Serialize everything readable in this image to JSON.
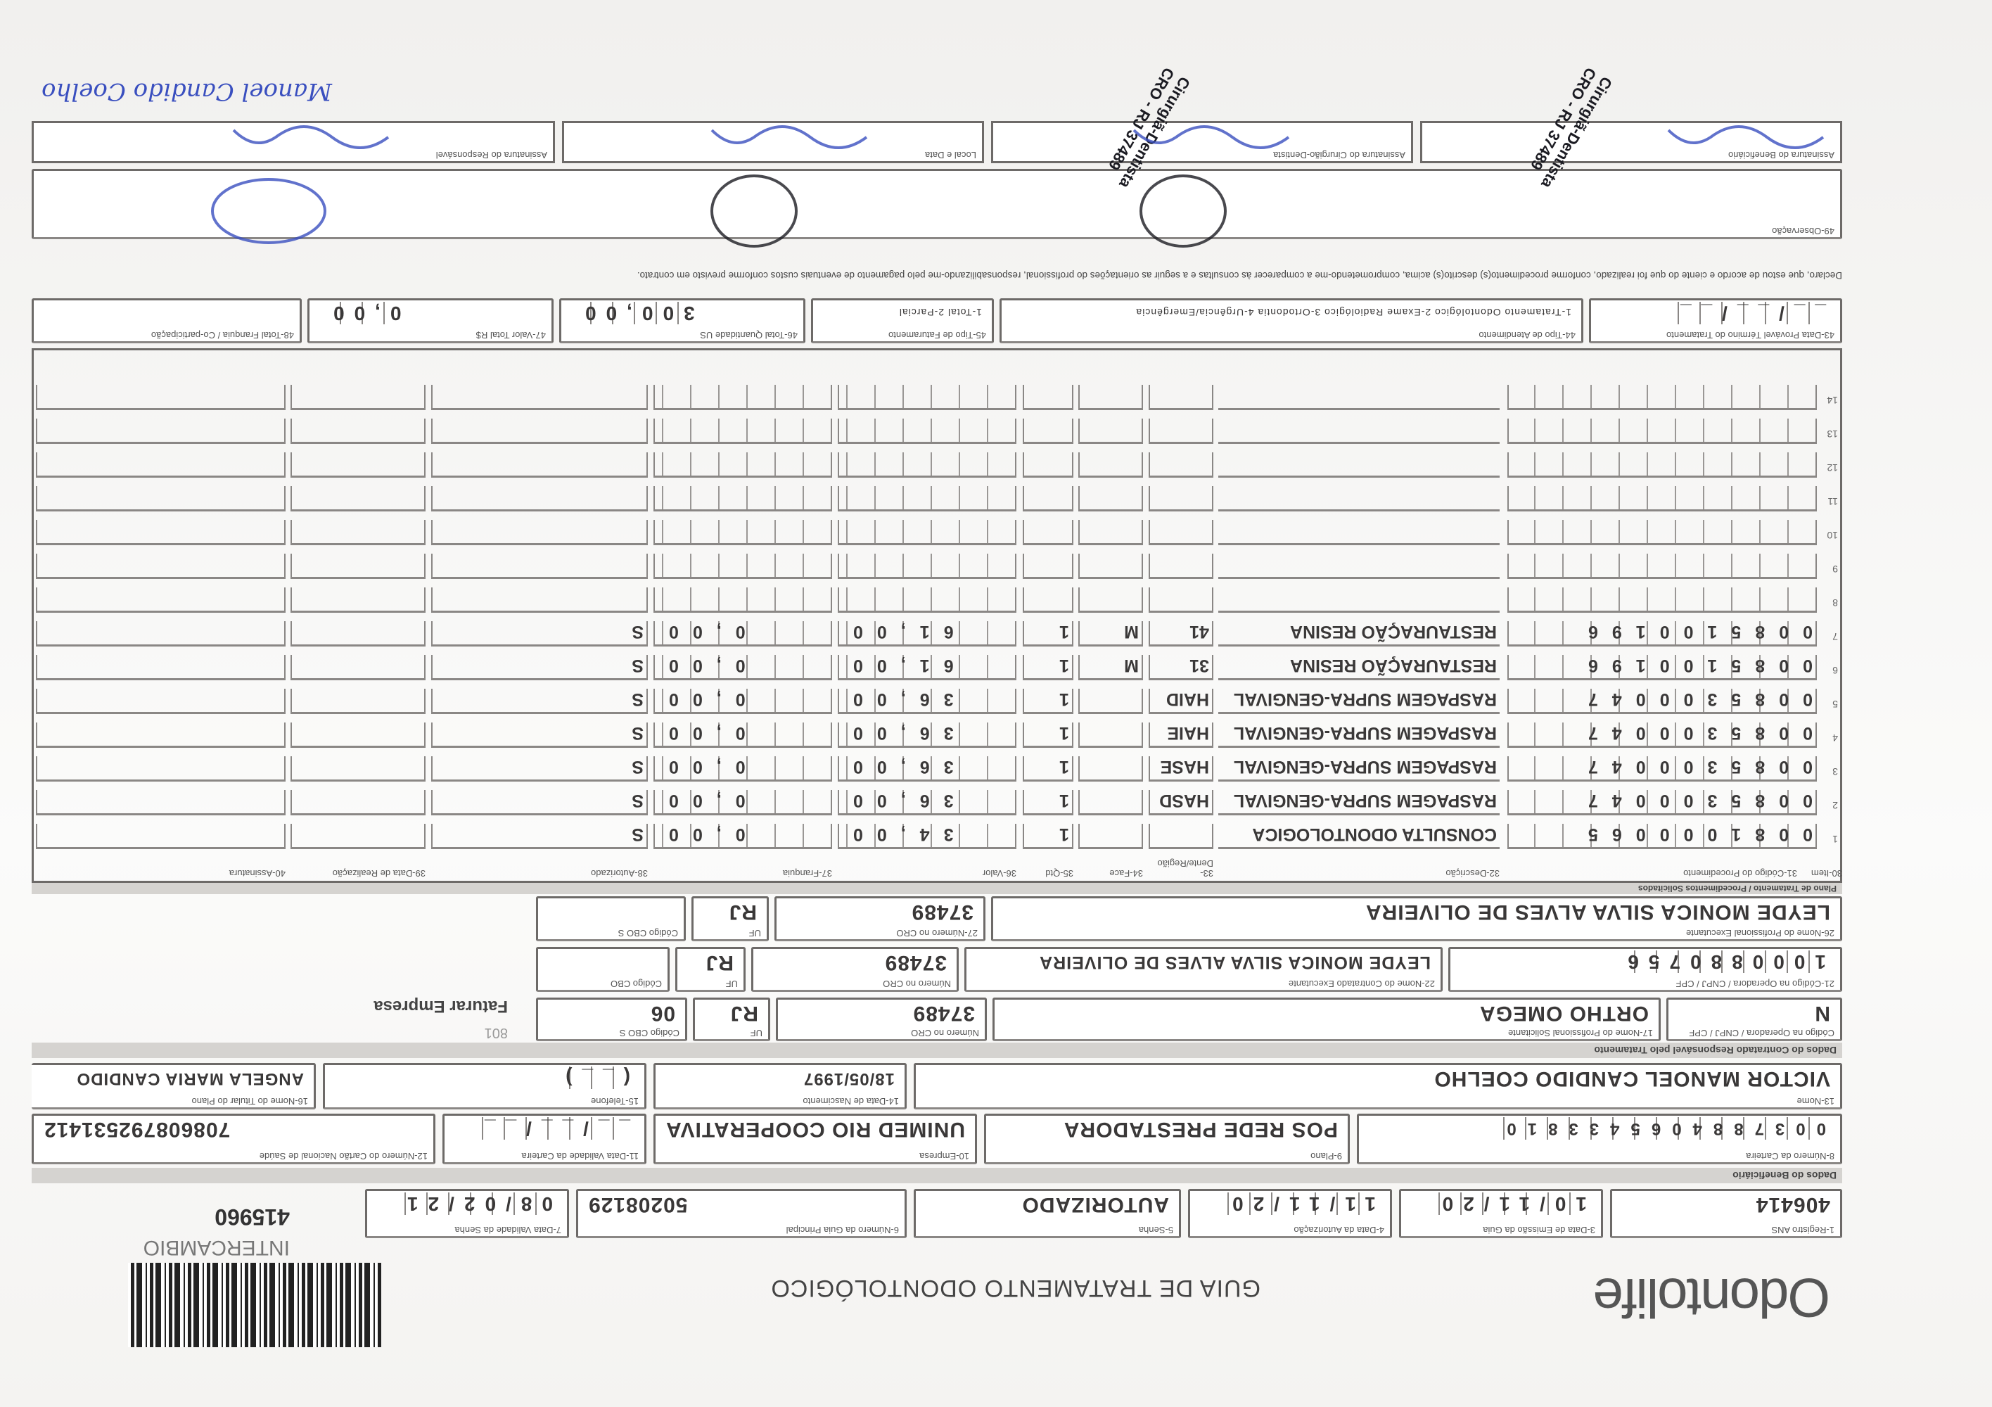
{
  "header": {
    "logo": "Odontolife",
    "logo_tagline": "",
    "title": "GUIA DE TRATAMENTO ODONTOLÓGICO",
    "guide_number": "415960",
    "guide_type": "INTERCAMBIO"
  },
  "guide": {
    "registro_ans": {
      "label": "1-Registro ANS",
      "value": "406414"
    },
    "data_emissao": {
      "label": "3-Data de Emissão da Guia",
      "value": "10/11/20"
    },
    "data_autorizacao": {
      "label": "4-Data da Autorização",
      "value": "11/11/20"
    },
    "senha": {
      "label": "5-Senha",
      "value": "AUTORIZADO"
    },
    "guia_principal": {
      "label": "6-Número da Guia Principal",
      "value": "50208129"
    },
    "validade_senha": {
      "label": "7-Data Validade da Senha",
      "value": "08/02/21"
    }
  },
  "beneficiary": {
    "section_label": "Dados do Beneficiário",
    "carteira": {
      "label": "8-Número da Carteira",
      "value": "0037884065433810"
    },
    "plano": {
      "label": "9-Plano",
      "value": "POS REDE PRESTADORA"
    },
    "empresa": {
      "label": "10-Empresa",
      "value": "UNIMED RIO COOPERATIVA"
    },
    "validade_carteira": {
      "label": "11-Data Validade da Carteira",
      "value": "__/__/__"
    },
    "cartao_nacional": {
      "label": "12-Número do Cartão Nacional de Saúde",
      "value": "708608792531412"
    },
    "nome": {
      "label": "13-Nome",
      "value": "VICTOR MANOEL CANDIDO COELHO"
    },
    "data_nascimento": {
      "label": "14-Data de Nascimento",
      "value": "18/05/1997"
    },
    "telefone": {
      "label": "15-Telefone",
      "value": "(__)"
    },
    "titular": {
      "label": "16-Nome do Titular do Plano",
      "value": "ANGELA MARIA CANDIDO"
    }
  },
  "contractor": {
    "section_label": "Dados do Contratado Responsável pelo Tratamento",
    "row1": {
      "codigo": {
        "label": "Código na Operadora / CNPJ / CPF",
        "value": "N"
      },
      "nome": {
        "label": "17-Nome do Profissional Solicitante",
        "value": "ORTHO OMEGA"
      },
      "cro": {
        "label": "Número no CRO",
        "value": "37489"
      },
      "uf": {
        "label": "UF",
        "value": "RJ"
      },
      "cbo": {
        "label": "Código CBO S",
        "value": "06"
      }
    },
    "row2": {
      "codigo": {
        "label": "21-Código na Operadora / CNPJ / CPF",
        "value": "1000880756"
      },
      "nome": {
        "label": "22-Nome do Contratado Executante",
        "value": "LEYDE MONICA SILVA ALVES DE OLIVEIRA"
      },
      "cro": {
        "label": "Número no CRO",
        "value": "37489"
      },
      "uf": {
        "label": "UF",
        "value": "RJ"
      },
      "cbo": {
        "label": "Código CBO",
        "value": ""
      }
    },
    "row3": {
      "nome": {
        "label": "26-Nome do Profissional Executante",
        "value": "LEYDE MONICA SILVA ALVES DE OLIVEIRA"
      },
      "cro": {
        "label": "27-Número no CRO",
        "value": "37489"
      },
      "uf": {
        "label": "UF",
        "value": "RJ"
      },
      "cbo": {
        "label": "Código CBO S",
        "value": ""
      }
    },
    "billing_note": "Faturar Empresa",
    "billing_code": "801"
  },
  "procedures": {
    "section_label": "Plano de Tratamento / Procedimentos Solicitados",
    "columns": [
      "30-Item",
      "31-Código do Procedimento",
      "32-Descrição",
      "33-Dente/Região",
      "34-Face",
      "35-Qtd",
      "36-Valor",
      "37-Franquia",
      "38-Autorizado",
      "39-Data de Realização",
      "40-Assinatura"
    ],
    "rows": [
      {
        "item": "1",
        "code": "0081000065",
        "description": "CONSULTA ODONTOLOGICA",
        "tooth": "",
        "face": "",
        "qty": "1",
        "value": "34,00",
        "franchise": "0,00",
        "authorized": "S"
      },
      {
        "item": "2",
        "code": "0085300047",
        "description": "RASPAGEM SUPRA-GENGIVAL",
        "tooth": "HASD",
        "face": "",
        "qty": "1",
        "value": "36,00",
        "franchise": "0,00",
        "authorized": "S"
      },
      {
        "item": "3",
        "code": "0085300047",
        "description": "RASPAGEM SUPRA-GENGIVAL",
        "tooth": "HASE",
        "face": "",
        "qty": "1",
        "value": "36,00",
        "franchise": "0,00",
        "authorized": "S"
      },
      {
        "item": "4",
        "code": "0085300047",
        "description": "RASPAGEM SUPRA-GENGIVAL",
        "tooth": "HAIE",
        "face": "",
        "qty": "1",
        "value": "36,00",
        "franchise": "0,00",
        "authorized": "S"
      },
      {
        "item": "5",
        "code": "0085300047",
        "description": "RASPAGEM SUPRA-GENGIVAL",
        "tooth": "HAID",
        "face": "",
        "qty": "1",
        "value": "36,00",
        "franchise": "0,00",
        "authorized": "S"
      },
      {
        "item": "6",
        "code": "0085100196",
        "description": "RESTAURAÇÃO RESINA",
        "tooth": "31",
        "face": "M",
        "qty": "1",
        "value": "61,00",
        "franchise": "0,00",
        "authorized": "S"
      },
      {
        "item": "7",
        "code": "0085100196",
        "description": "RESTAURAÇÃO RESINA",
        "tooth": "41",
        "face": "M",
        "qty": "1",
        "value": "61,00",
        "franchise": "0,00",
        "authorized": "S"
      },
      {
        "item": "8"
      },
      {
        "item": "9"
      },
      {
        "item": "10"
      },
      {
        "item": "11"
      },
      {
        "item": "12"
      },
      {
        "item": "13"
      },
      {
        "item": "14"
      }
    ]
  },
  "totals": {
    "data_termino": {
      "label": "43-Data Provável Término do Tratamento",
      "value": "__/__/__"
    },
    "tipo_atendimento": {
      "label": "44-Tipo de Atendimento",
      "value": "1-Tratamento Odontológico  2-Exame Radiológico  3-Ortodontia  4-Urgência/Emergência"
    },
    "tipo_faturamento": {
      "label": "45-Tipo de Faturamento",
      "value": "1-Total  2-Parcial"
    },
    "total_quantidade": {
      "label": "46-Total Quantidade US",
      "value": "300,00"
    },
    "total_valor": {
      "label": "47-Valor Total R$",
      "value": "0,00"
    },
    "total_franquia": {
      "label": "48-Total Franquia / Co-participação",
      "value": ""
    }
  },
  "declaration": "Declaro, que estou de acordo e ciente do que foi realizado, conforme procedimento(s) descrito(s) acima, comprometendo-me a comparecer às consultas e a seguir as orientações do profissional, responsabilizando-me pelo pagamento de eventuais custos conforme previsto em contrato.",
  "observation": {
    "label": "49-Observação",
    "value": ""
  },
  "signatures": {
    "labels": [
      "Assinatura do Beneficiário",
      "Assinatura do Cirurgião-Dentista",
      "Local e Data",
      "Assinatura do Responsável"
    ],
    "stamp_text": "Cirurgiã-Dentista CRO - RJ 37489",
    "handwritten_note": "Manoel Candido Coelho"
  },
  "colors": {
    "ink": "#3a4fbf",
    "stamp": "#1b1b22",
    "form_border": "#6d6a68",
    "band": "#d5d3d0"
  }
}
